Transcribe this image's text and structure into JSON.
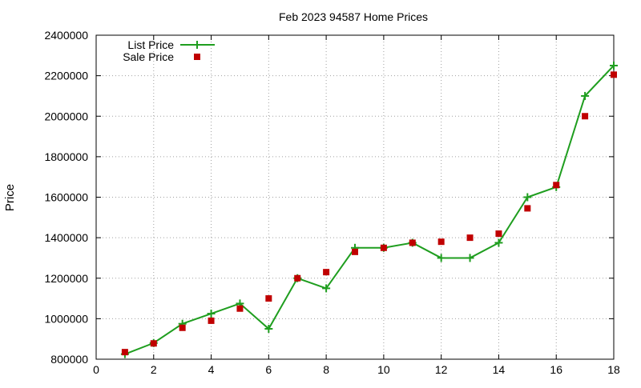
{
  "chart_data": {
    "type": "line",
    "title": "Feb 2023 94587 Home Prices",
    "xlabel": "",
    "ylabel": "Price",
    "xlim": [
      0,
      18
    ],
    "ylim": [
      800000,
      2400000
    ],
    "x_ticks": [
      0,
      2,
      4,
      6,
      8,
      10,
      12,
      14,
      16,
      18
    ],
    "y_ticks": [
      800000,
      1000000,
      1200000,
      1400000,
      1600000,
      1800000,
      2000000,
      2200000,
      2400000
    ],
    "grid": true,
    "legend_position": "top-left",
    "x": [
      1,
      2,
      3,
      4,
      5,
      6,
      7,
      8,
      9,
      10,
      11,
      12,
      13,
      14,
      15,
      16,
      17,
      18
    ],
    "series": [
      {
        "name": "List Price",
        "style": "line-with-plus-markers",
        "color": "#1f9e1f",
        "values": [
          825000,
          880000,
          975000,
          1025000,
          1075000,
          950000,
          1200000,
          1150000,
          1350000,
          1350000,
          1375000,
          1300000,
          1300000,
          1375000,
          1600000,
          1650000,
          2100000,
          2250000
        ]
      },
      {
        "name": "Sale Price",
        "style": "square-markers",
        "color": "#c00000",
        "values": [
          835000,
          878000,
          955000,
          990000,
          1050000,
          1100000,
          1200000,
          1230000,
          1330000,
          1350000,
          1375000,
          1380000,
          1400000,
          1420000,
          1545000,
          1660000,
          2000000,
          2205000
        ]
      }
    ]
  }
}
